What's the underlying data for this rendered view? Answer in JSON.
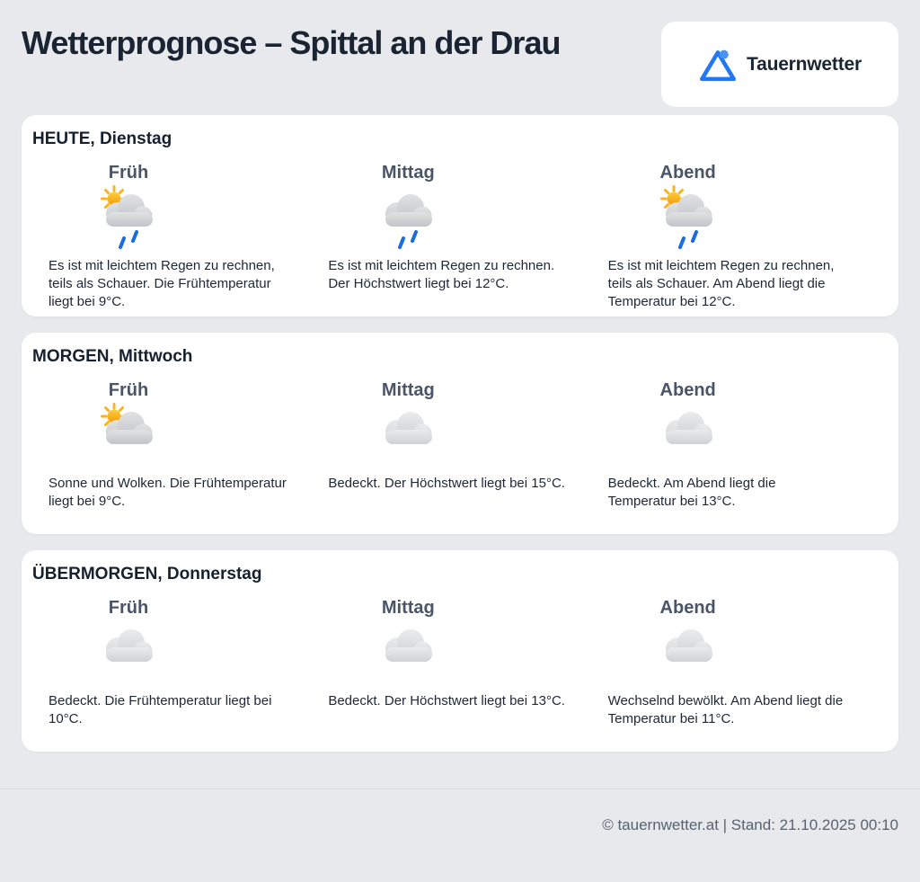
{
  "page": {
    "title": "Wetterprognose – Spittal an der Drau",
    "brand": "Tauernwetter",
    "footer": "© tauernwetter.at | Stand: 21.10.2025 00:10"
  },
  "colors": {
    "background": "#e7e9ec",
    "card": "#ffffff",
    "title_text": "#1b2433",
    "heading_text": "#16202e",
    "label_text": "#4a5568",
    "body_text": "#1d2736",
    "footer_text": "#5a6270",
    "brand_blue": "#2277f3",
    "brand_circle_blue": "#4795f3",
    "rain_blue": "#1a6ce0",
    "sun_top": "#fccf3e",
    "sun_bottom": "#f5990b",
    "ray_gold": "#f8b41f",
    "cloud_top": "#e1e2e4",
    "cloud_bottom": "#c2c4c7",
    "cloud_light_top": "#eaebec",
    "cloud_light_bottom": "#cfd1d4",
    "divider": "#d8dbe0"
  },
  "days": [
    {
      "heading": "HEUTE, Dienstag",
      "periods": [
        {
          "label": "Früh",
          "icon": "sun-rain-cloud",
          "text": "Es ist mit leichtem Regen zu rechnen, teils als Schauer. Die Frühtemperatur liegt bei 9°C."
        },
        {
          "label": "Mittag",
          "icon": "rain-cloud",
          "text": "Es ist mit leichtem Regen zu rechnen. Der Höchstwert liegt bei 12°C."
        },
        {
          "label": "Abend",
          "icon": "sun-rain-cloud",
          "text": "Es ist mit leichtem Regen zu rechnen, teils als Schauer. Am Abend liegt die Temperatur bei 12°C."
        }
      ]
    },
    {
      "heading": "MORGEN, Mittwoch",
      "periods": [
        {
          "label": "Früh",
          "icon": "sun-cloud",
          "text": "Sonne und Wolken. Die Frühtemperatur liegt bei 9°C."
        },
        {
          "label": "Mittag",
          "icon": "cloud",
          "text": "Bedeckt. Der Höchstwert liegt bei 15°C."
        },
        {
          "label": "Abend",
          "icon": "cloud",
          "text": "Bedeckt. Am Abend liegt die Temperatur bei 13°C."
        }
      ]
    },
    {
      "heading": "ÜBERMORGEN, Donnerstag",
      "periods": [
        {
          "label": "Früh",
          "icon": "cloud",
          "text": "Bedeckt. Die Frühtemperatur liegt bei 10°C."
        },
        {
          "label": "Mittag",
          "icon": "cloud",
          "text": "Bedeckt. Der Höchstwert liegt bei 13°C."
        },
        {
          "label": "Abend",
          "icon": "cloud",
          "text": "Wechselnd bewölkt. Am Abend liegt die Temperatur bei 11°C."
        }
      ]
    }
  ]
}
